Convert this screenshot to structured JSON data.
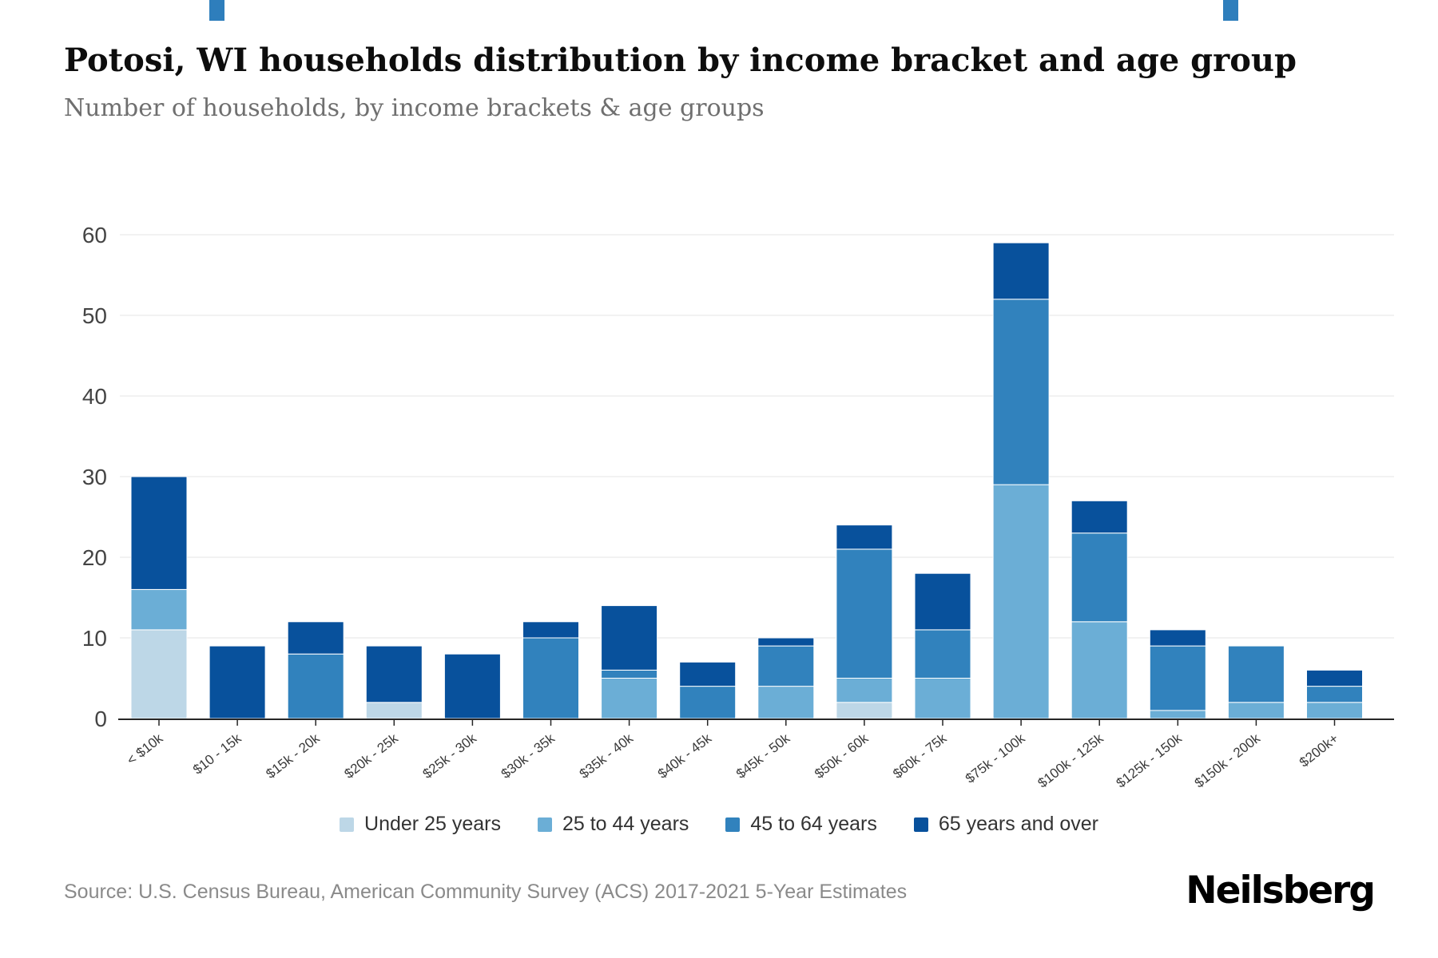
{
  "header": {
    "title": "Potosi, WI households distribution by income bracket and age group",
    "subtitle": "Number of households, by income brackets & age groups"
  },
  "chart_data": {
    "type": "bar",
    "stacked": true,
    "title": "Potosi, WI households distribution by income bracket and age group",
    "xlabel": "",
    "ylabel": "",
    "ylim": [
      0,
      60
    ],
    "yticks": [
      0,
      10,
      20,
      30,
      40,
      50,
      60
    ],
    "grid": true,
    "legend_position": "bottom",
    "categories": [
      "< $10k",
      "$10 - 15k",
      "$15k - 20k",
      "$20k - 25k",
      "$25k - 30k",
      "$30k - 35k",
      "$35k - 40k",
      "$40k - 45k",
      "$45k - 50k",
      "$50k - 60k",
      "$60k - 75k",
      "$75k - 100k",
      "$100k - 125k",
      "$125k - 150k",
      "$150k - 200k",
      "$200k+"
    ],
    "series": [
      {
        "name": "Under 25 years",
        "color": "#bdd7e7",
        "values": [
          11,
          0,
          0,
          2,
          0,
          0,
          0,
          0,
          0,
          2,
          0,
          0,
          0,
          0,
          0,
          0
        ]
      },
      {
        "name": "25 to 44 years",
        "color": "#6baed6",
        "values": [
          5,
          0,
          0,
          0,
          0,
          0,
          5,
          0,
          4,
          3,
          5,
          29,
          12,
          1,
          2,
          2
        ]
      },
      {
        "name": "45 to 64 years",
        "color": "#3182bd",
        "values": [
          0,
          0,
          8,
          0,
          0,
          10,
          1,
          4,
          5,
          16,
          6,
          23,
          11,
          8,
          7,
          2
        ]
      },
      {
        "name": "65 years and over",
        "color": "#08519c",
        "values": [
          14,
          9,
          4,
          7,
          8,
          2,
          8,
          3,
          1,
          3,
          7,
          7,
          4,
          2,
          0,
          2
        ]
      }
    ],
    "totals": [
      30,
      9,
      12,
      9,
      8,
      12,
      14,
      7,
      10,
      24,
      18,
      59,
      27,
      11,
      9,
      6
    ]
  },
  "axis_style": {
    "grid_color": "#ededed",
    "axis_color": "#262626",
    "y_label_color": "#444444",
    "x_label_color": "#3a3a3a"
  },
  "footer": {
    "source": "Source: U.S. Census Bureau, American Community Survey (ACS) 2017-2021 5-Year Estimates",
    "brand": "Neilsberg"
  }
}
